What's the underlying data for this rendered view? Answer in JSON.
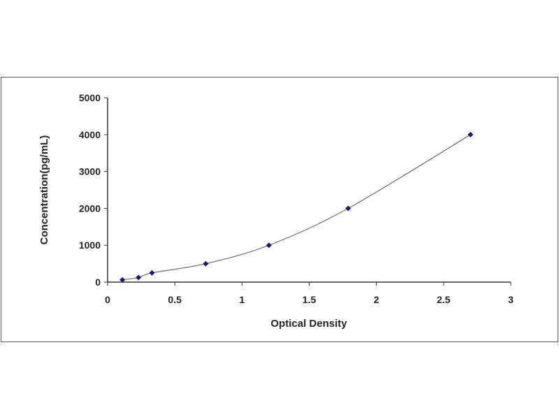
{
  "chart_data": {
    "type": "scatter",
    "title": "",
    "xlabel": "Optical Density",
    "ylabel": "Concentration(pg/mL)",
    "xlim": [
      0,
      3
    ],
    "ylim": [
      0,
      5000
    ],
    "xticks": [
      "0",
      "0.5",
      "1",
      "1.5",
      "2",
      "2.5",
      "3"
    ],
    "yticks": [
      "0",
      "1000",
      "2000",
      "3000",
      "4000",
      "5000"
    ],
    "grid": false,
    "legend": "none",
    "trendline": "smooth fitted curve",
    "series": [
      {
        "x": [
          0.11,
          0.23,
          0.33,
          0.73,
          1.2,
          1.79,
          2.7
        ],
        "y": [
          62.5,
          125,
          250,
          500,
          1000,
          2000,
          4000
        ]
      }
    ],
    "colors": {
      "marker": "#1a1a6e",
      "line": "#6a6a80",
      "axis": "#333333"
    }
  }
}
